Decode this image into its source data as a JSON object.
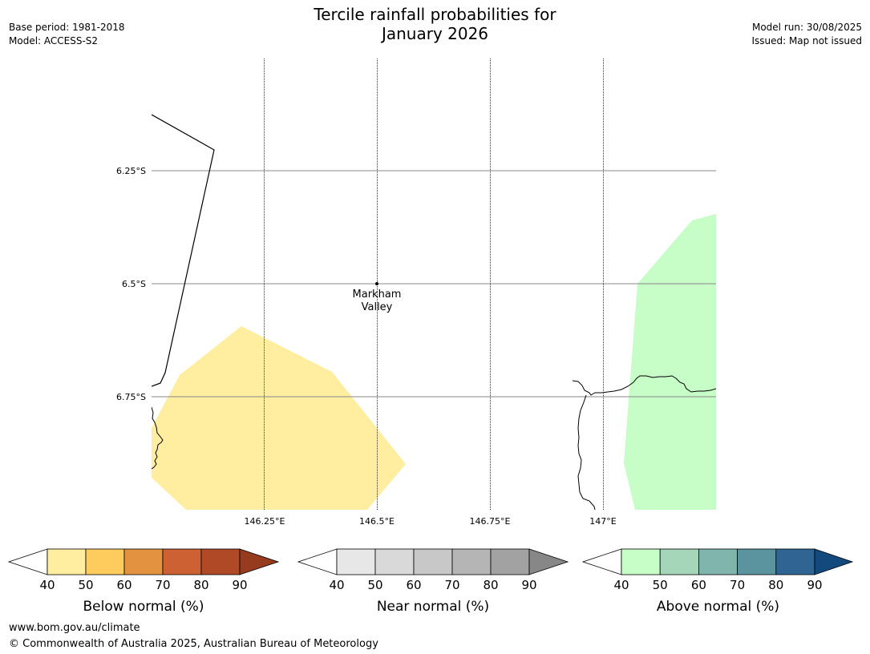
{
  "title": {
    "line1": "Tercile rainfall probabilities for",
    "line2": "January 2026"
  },
  "meta_left": {
    "base_period": "Base period: 1981-2018",
    "model": "Model: ACCESS-S2"
  },
  "meta_right": {
    "model_run": "Model run: 30/08/2025",
    "issued": "Issued: Map not issued"
  },
  "map": {
    "lat_labels": [
      "6.25°S",
      "6.5°S",
      "6.75°S"
    ],
    "lon_labels": [
      "146.25°E",
      "146.5°E",
      "146.75°E",
      "147°E"
    ],
    "place": {
      "line1": "Markham",
      "line2": "Valley"
    },
    "colors": {
      "below_normal_40_50": "#ffeda0",
      "above_normal_40_50": "#c7fdc7"
    }
  },
  "colorbars": [
    {
      "title": "Below normal (%)",
      "ticks": [
        "40",
        "50",
        "60",
        "70",
        "80",
        "90"
      ],
      "colors": [
        "#ffeda0",
        "#fecc5c",
        "#e3923f",
        "#cd6133",
        "#b04a26",
        "#973b1f"
      ]
    },
    {
      "title": "Near normal (%)",
      "ticks": [
        "40",
        "50",
        "60",
        "70",
        "80",
        "90"
      ],
      "colors": [
        "#e7e7e7",
        "#d9d9d9",
        "#c8c8c8",
        "#b5b5b5",
        "#a2a2a2",
        "#878787"
      ]
    },
    {
      "title": "Above normal (%)",
      "ticks": [
        "40",
        "50",
        "60",
        "70",
        "80",
        "90"
      ],
      "colors": [
        "#c7fdc7",
        "#a5d6b9",
        "#80b5ae",
        "#5b949f",
        "#306593",
        "#124a7e"
      ]
    }
  ],
  "footer": {
    "url": "www.bom.gov.au/climate",
    "copyright": "© Commonwealth of Australia 2025, Australian Bureau of Meteorology"
  }
}
